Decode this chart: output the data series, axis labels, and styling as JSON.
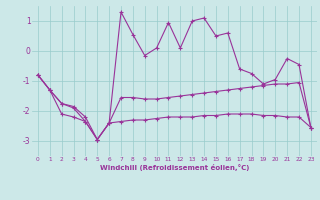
{
  "xlabel": "Windchill (Refroidissement éolien,°C)",
  "x": [
    0,
    1,
    2,
    3,
    4,
    5,
    6,
    7,
    8,
    9,
    10,
    11,
    12,
    13,
    14,
    15,
    16,
    17,
    18,
    19,
    20,
    21,
    22,
    23
  ],
  "line1": [
    -0.8,
    -1.3,
    -1.75,
    -1.85,
    -2.2,
    -2.95,
    -2.4,
    -1.55,
    -1.55,
    -1.6,
    -1.6,
    -1.55,
    -1.5,
    -1.45,
    -1.4,
    -1.35,
    -1.3,
    -1.25,
    -1.2,
    -1.15,
    -1.1,
    -1.1,
    -1.05,
    -2.55
  ],
  "line2": [
    -0.8,
    -1.3,
    -2.1,
    -2.2,
    -2.35,
    -2.95,
    -2.4,
    -2.35,
    -2.3,
    -2.3,
    -2.25,
    -2.2,
    -2.2,
    -2.2,
    -2.15,
    -2.15,
    -2.1,
    -2.1,
    -2.1,
    -2.15,
    -2.15,
    -2.2,
    -2.2,
    -2.55
  ],
  "line3": [
    -0.8,
    -1.3,
    -1.75,
    -1.9,
    -2.35,
    -2.95,
    -2.4,
    1.3,
    0.55,
    -0.15,
    0.1,
    0.95,
    0.1,
    1.0,
    1.1,
    0.5,
    0.6,
    -0.6,
    -0.75,
    -1.1,
    -0.95,
    -0.25,
    -0.45,
    -2.55
  ],
  "color": "#993399",
  "bg_color": "#cce8e8",
  "grid_color": "#99cccc",
  "ylim": [
    -3.5,
    1.5
  ],
  "yticks": [
    -3,
    -2,
    -1,
    0,
    1
  ],
  "marker": "+"
}
